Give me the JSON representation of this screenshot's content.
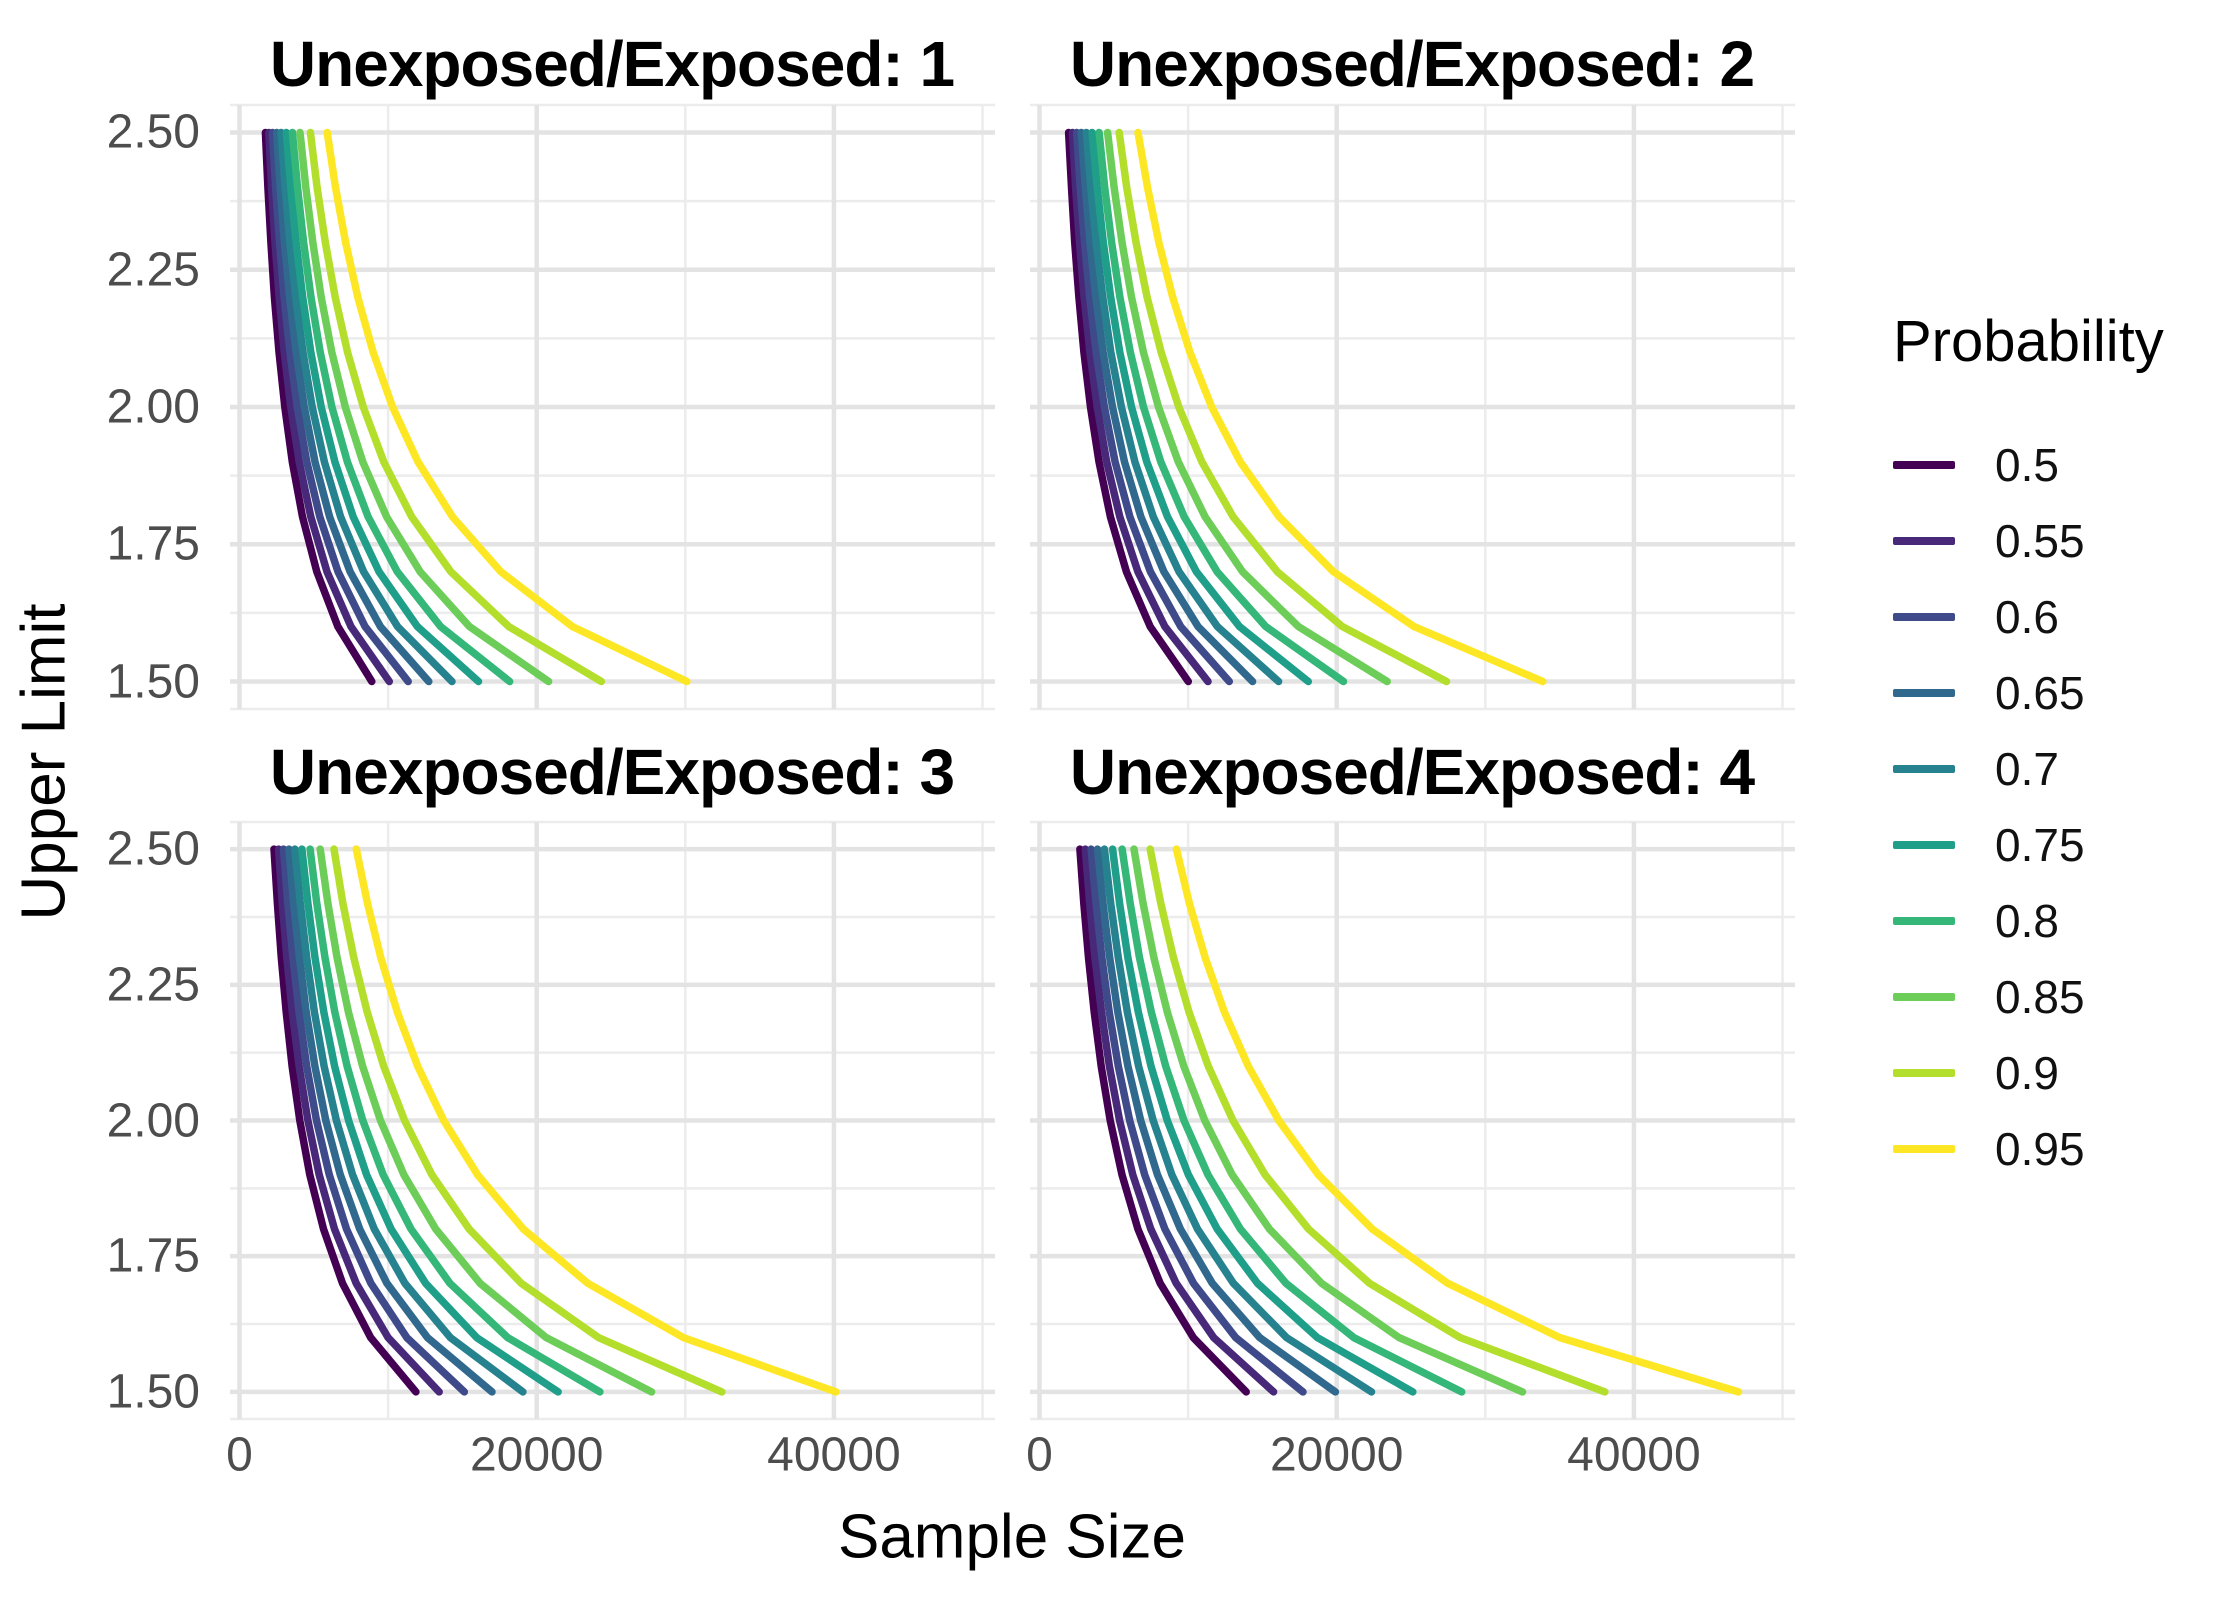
{
  "figure": {
    "x_axis_title": "Sample Size",
    "y_axis_title": "Upper Limit",
    "background": "#ffffff",
    "grid_major_color": "#e3e3e3",
    "grid_minor_color": "#ececec",
    "tick_label_color": "#4d4d4d"
  },
  "legend": {
    "title": "Probability",
    "entries": [
      {
        "label": "0.5",
        "color": "#440154"
      },
      {
        "label": "0.55",
        "color": "#482878"
      },
      {
        "label": "0.6",
        "color": "#3e4a89"
      },
      {
        "label": "0.65",
        "color": "#31688e"
      },
      {
        "label": "0.7",
        "color": "#26828e"
      },
      {
        "label": "0.75",
        "color": "#1f9e89"
      },
      {
        "label": "0.8",
        "color": "#35b779"
      },
      {
        "label": "0.85",
        "color": "#6dcd59"
      },
      {
        "label": "0.9",
        "color": "#b4de2c"
      },
      {
        "label": "0.95",
        "color": "#fde725"
      }
    ]
  },
  "axes": {
    "x_domain": [
      -640,
      50840
    ],
    "y_domain": [
      1.45,
      2.55
    ],
    "x_tick_values": [
      0,
      20000,
      40000
    ],
    "x_tick_labels": [
      "0",
      "20000",
      "40000"
    ],
    "x_minor_values": [
      10000,
      30000,
      50000
    ],
    "y_tick_values": [
      2.5,
      2.25,
      2.0,
      1.75,
      1.5
    ],
    "y_tick_labels": [
      "2.50",
      "2.25",
      "2.00",
      "1.75",
      "1.50"
    ],
    "y_minor_values": [
      1.45,
      1.625,
      1.875,
      2.125,
      2.375,
      2.55
    ]
  },
  "chart_data": {
    "type": "line",
    "title": "",
    "xlabel": "Sample Size",
    "ylabel": "Upper Limit",
    "legend_title": "Probability",
    "legend_position": "right",
    "grid": true,
    "facet_variable": "Unexposed/Exposed ratio",
    "xlim": [
      0,
      50000
    ],
    "ylim": [
      1.5,
      2.5
    ],
    "upper_limit": [
      2.5,
      2.4,
      2.3,
      2.2,
      2.1,
      2.0,
      1.9,
      1.8,
      1.7,
      1.6,
      1.5
    ],
    "facets": [
      {
        "title": "Unexposed/Exposed: 1",
        "unexposed_exposed_ratio": 1,
        "series": [
          {
            "probability": 0.5,
            "color": "#440154",
            "sample_size": [
              1740,
              1910,
              2110,
              2350,
              2660,
              3050,
              3550,
              4240,
              5200,
              6620,
              8900
            ]
          },
          {
            "probability": 0.55,
            "color": "#482878",
            "sample_size": [
              1970,
              2160,
              2390,
              2670,
              3010,
              3450,
              4020,
              4800,
              5890,
              7500,
              10080
            ]
          },
          {
            "probability": 0.6,
            "color": "#3e4a89",
            "sample_size": [
              2220,
              2430,
              2690,
              3000,
              3390,
              3880,
              4530,
              5400,
              6630,
              8450,
              11350
            ]
          },
          {
            "probability": 0.65,
            "color": "#31688e",
            "sample_size": [
              2500,
              2730,
              3020,
              3370,
              3810,
              4360,
              5080,
              6060,
              7440,
              9480,
              12740
            ]
          },
          {
            "probability": 0.7,
            "color": "#26828e",
            "sample_size": [
              2800,
              3070,
              3390,
              3780,
              4270,
              4890,
              5710,
              6800,
              8350,
              10640,
              14300
            ]
          },
          {
            "probability": 0.75,
            "color": "#1f9e89",
            "sample_size": [
              3150,
              3450,
              3810,
              4250,
              4800,
              5500,
              6420,
              7650,
              9390,
              11970,
              16080
            ]
          },
          {
            "probability": 0.8,
            "color": "#35b779",
            "sample_size": [
              3560,
              3900,
              4310,
              4810,
              5430,
              6220,
              7260,
              8650,
              10620,
              13530,
              18180
            ]
          },
          {
            "probability": 0.85,
            "color": "#6dcd59",
            "sample_size": [
              4070,
              4460,
              4930,
              5500,
              6210,
              7120,
              8300,
              9900,
              12150,
              15480,
              20800
            ]
          },
          {
            "probability": 0.9,
            "color": "#b4de2c",
            "sample_size": [
              4770,
              5220,
              5770,
              6440,
              7270,
              8330,
              9710,
              11590,
              14220,
              18120,
              24350
            ]
          },
          {
            "probability": 0.95,
            "color": "#fde725",
            "sample_size": [
              5900,
              6460,
              7140,
              7960,
              8990,
              10300,
              12010,
              14330,
              17580,
              22410,
              30110
            ]
          }
        ]
      },
      {
        "title": "Unexposed/Exposed: 2",
        "unexposed_exposed_ratio": 2,
        "series": [
          {
            "probability": 0.5,
            "color": "#440154",
            "sample_size": [
              1960,
              2150,
              2370,
              2650,
              2990,
              3430,
              4000,
              4770,
              5850,
              7450,
              10010
            ]
          },
          {
            "probability": 0.55,
            "color": "#482878",
            "sample_size": [
              2220,
              2430,
              2690,
              3000,
              3390,
              3880,
              4520,
              5400,
              6620,
              8440,
              11340
            ]
          },
          {
            "probability": 0.6,
            "color": "#3e4a89",
            "sample_size": [
              2500,
              2740,
              3030,
              3380,
              3810,
              4370,
              5090,
              6080,
              7460,
              9500,
              12770
            ]
          },
          {
            "probability": 0.65,
            "color": "#31688e",
            "sample_size": [
              2810,
              3080,
              3400,
              3790,
              4280,
              4910,
              5720,
              6820,
              8370,
              10670,
              14340
            ]
          },
          {
            "probability": 0.7,
            "color": "#26828e",
            "sample_size": [
              3150,
              3450,
              3810,
              4260,
              4800,
              5510,
              6420,
              7660,
              9390,
              11970,
              16090
            ]
          },
          {
            "probability": 0.75,
            "color": "#1f9e89",
            "sample_size": [
              3540,
              3880,
              4290,
              4790,
              5400,
              6190,
              7220,
              8610,
              10560,
              13460,
              18090
            ]
          },
          {
            "probability": 0.8,
            "color": "#35b779",
            "sample_size": [
              4010,
              4390,
              4850,
              5410,
              6110,
              7000,
              8160,
              9740,
              11950,
              15230,
              20460
            ]
          },
          {
            "probability": 0.85,
            "color": "#6dcd59",
            "sample_size": [
              4580,
              5020,
              5550,
              6190,
              6990,
              8010,
              9340,
              11140,
              13660,
              17420,
              23400
            ]
          },
          {
            "probability": 0.9,
            "color": "#b4de2c",
            "sample_size": [
              5360,
              5870,
              6490,
              7240,
              8180,
              9370,
              10930,
              13030,
              16000,
              20380,
              27390
            ]
          },
          {
            "probability": 0.95,
            "color": "#fde725",
            "sample_size": [
              6630,
              7270,
              8030,
              8960,
              10120,
              11590,
              13510,
              16120,
              19780,
              25210,
              33870
            ]
          }
        ]
      },
      {
        "title": "Unexposed/Exposed: 3",
        "unexposed_exposed_ratio": 3,
        "series": [
          {
            "probability": 0.5,
            "color": "#440154",
            "sample_size": [
              2320,
              2550,
              2810,
              3140,
              3540,
              4060,
              4730,
              5650,
              6930,
              8830,
              11870
            ]
          },
          {
            "probability": 0.55,
            "color": "#482878",
            "sample_size": [
              2630,
              2880,
              3180,
              3550,
              4010,
              4600,
              5360,
              6390,
              7850,
              10000,
              13440
            ]
          },
          {
            "probability": 0.6,
            "color": "#3e4a89",
            "sample_size": [
              2960,
              3250,
              3590,
              4000,
              4520,
              5180,
              6040,
              7200,
              8840,
              11260,
              15130
            ]
          },
          {
            "probability": 0.65,
            "color": "#31688e",
            "sample_size": [
              3330,
              3640,
              4030,
              4490,
              5070,
              5810,
              6780,
              8090,
              9920,
              12650,
              16990
            ]
          },
          {
            "probability": 0.7,
            "color": "#26828e",
            "sample_size": [
              3730,
              4090,
              4520,
              5040,
              5690,
              6520,
              7610,
              9070,
              11130,
              14190,
              19070
            ]
          },
          {
            "probability": 0.75,
            "color": "#1f9e89",
            "sample_size": [
              4200,
              4600,
              5080,
              5670,
              6400,
              7340,
              8550,
              10200,
              12520,
              15960,
              21440
            ]
          },
          {
            "probability": 0.8,
            "color": "#35b779",
            "sample_size": [
              4750,
              5200,
              5750,
              6410,
              7240,
              8300,
              9670,
              11540,
              14160,
              18050,
              24250
            ]
          },
          {
            "probability": 0.85,
            "color": "#6dcd59",
            "sample_size": [
              5430,
              5950,
              6570,
              7330,
              8280,
              9490,
              11060,
              13200,
              16190,
              20640,
              27730
            ]
          },
          {
            "probability": 0.9,
            "color": "#b4de2c",
            "sample_size": [
              6360,
              6960,
              7690,
              8590,
              9700,
              11110,
              12950,
              15450,
              18960,
              24160,
              32460
            ]
          },
          {
            "probability": 0.95,
            "color": "#fde725",
            "sample_size": [
              7860,
              8610,
              9510,
              10620,
              11990,
              13740,
              16020,
              19100,
              23440,
              29880,
              40140
            ]
          }
        ]
      },
      {
        "title": "Unexposed/Exposed: 4",
        "unexposed_exposed_ratio": 4,
        "series": [
          {
            "probability": 0.5,
            "color": "#440154",
            "sample_size": [
              2720,
              2980,
              3300,
              3680,
              4150,
              4760,
              5550,
              6620,
              8120,
              10350,
              13910
            ]
          },
          {
            "probability": 0.55,
            "color": "#482878",
            "sample_size": [
              3080,
              3380,
              3730,
              4170,
              4700,
              5390,
              6280,
              7490,
              9200,
              11720,
              15750
            ]
          },
          {
            "probability": 0.6,
            "color": "#3e4a89",
            "sample_size": [
              3470,
              3800,
              4200,
              4690,
              5300,
              6070,
              7080,
              8440,
              10360,
              13200,
              17730
            ]
          },
          {
            "probability": 0.65,
            "color": "#31688e",
            "sample_size": [
              3900,
              4270,
              4720,
              5270,
              5950,
              6810,
              7940,
              9480,
              11630,
              14820,
              19910
            ]
          },
          {
            "probability": 0.7,
            "color": "#26828e",
            "sample_size": [
              4370,
              4790,
              5300,
              5910,
              6670,
              7650,
              8910,
              10630,
              13050,
              16630,
              22340
            ]
          },
          {
            "probability": 0.75,
            "color": "#1f9e89",
            "sample_size": [
              4920,
              5390,
              5950,
              6650,
              7500,
              8600,
              10020,
              11960,
              14670,
              18700,
              25120
            ]
          },
          {
            "probability": 0.8,
            "color": "#35b779",
            "sample_size": [
              5560,
              6100,
              6730,
              7520,
              8490,
              9720,
              11340,
              13520,
              16590,
              21150,
              28410
            ]
          },
          {
            "probability": 0.85,
            "color": "#6dcd59",
            "sample_size": [
              6360,
              6970,
              7700,
              8600,
              9710,
              11120,
              12970,
              15470,
              18980,
              24190,
              32500
            ]
          },
          {
            "probability": 0.9,
            "color": "#b4de2c",
            "sample_size": [
              7450,
              8160,
              9020,
              10060,
              11360,
              13020,
              15180,
              18100,
              22210,
              28310,
              38040
            ]
          },
          {
            "probability": 0.95,
            "color": "#fde725",
            "sample_size": [
              9210,
              10090,
              11150,
              12440,
              14050,
              16100,
              18770,
              22390,
              27470,
              35020,
              47040
            ]
          }
        ]
      }
    ]
  }
}
